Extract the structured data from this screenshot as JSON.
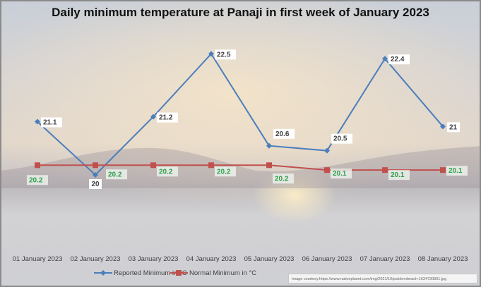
{
  "chart_data": {
    "type": "line",
    "title": "Daily minimum temperature at Panaji in first week of January 2023",
    "categories": [
      "01 January 2023",
      "02 January 2023",
      "03 January 2023",
      "04 January 2023",
      "05 January 2023",
      "06 January 2023",
      "07 January 2023",
      "08 January 2023"
    ],
    "series": [
      {
        "name": "Reported Minimum in °C",
        "values": [
          21.1,
          20,
          21.2,
          22.5,
          20.6,
          20.5,
          22.4,
          21
        ],
        "color": "#4a7ebb",
        "marker": "diamond"
      },
      {
        "name": "Normal Minimum in °C",
        "values": [
          20.2,
          20.2,
          20.2,
          20.2,
          20.2,
          20.1,
          20.1,
          20.1
        ],
        "color": "#c0504d",
        "marker": "square"
      }
    ],
    "ylim": [
      18.5,
      23
    ],
    "yaxis_visible": false,
    "grid": false,
    "legend": "bottom",
    "data_label_color": "#2ea04a"
  },
  "credit": "Image courtesy:https://www.nativeplanet.com/img/2021/10/palolembeach-1634730801.jpg"
}
